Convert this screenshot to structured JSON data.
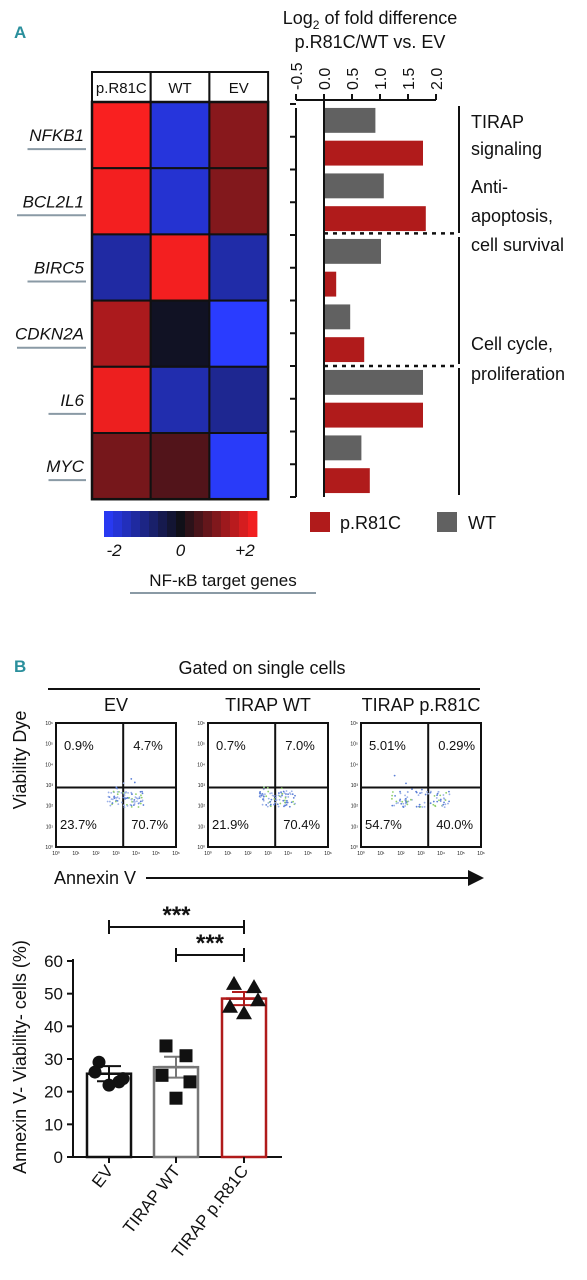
{
  "panel_a": {
    "letter": "A",
    "heatmap": {
      "columns": [
        "p.R81C",
        "WT",
        "EV"
      ],
      "genes": [
        "NFKB1",
        "BCL2L1",
        "BIRC5",
        "CDKN2A",
        "IL6",
        "MYC"
      ],
      "values": [
        [
          1.95,
          -1.7,
          1.0
        ],
        [
          1.9,
          -1.6,
          0.95
        ],
        [
          -1.2,
          1.9,
          -1.25
        ],
        [
          1.3,
          -0.1,
          -2.0
        ],
        [
          1.85,
          -1.3,
          -1.05
        ],
        [
          0.85,
          0.55,
          -1.95
        ]
      ],
      "scale_ticks": [
        "-2",
        "0",
        "+2"
      ],
      "scale_title": "NF-κB target genes",
      "colors": {
        "low": "#2a3cff",
        "mid": "#101018",
        "high": "#ff2020"
      }
    },
    "bar_chart": {
      "title_main": "Log",
      "title_sub": "2",
      "title_rest": " of fold difference",
      "title_line2": "p.R81C/WT vs. EV",
      "tick_labels": [
        "-0.5",
        "0.0",
        "0.5",
        "1.0",
        "1.5",
        "2.0"
      ],
      "groups": [
        {
          "label_lines": [
            "TIRAP",
            "signaling"
          ]
        },
        {
          "label_lines": [
            "Anti-",
            "apoptosis,",
            "cell survival"
          ]
        },
        {
          "label_lines": [
            "Cell cycle,",
            "proliferation"
          ]
        }
      ],
      "legend": [
        {
          "label": "p.R81C",
          "color": "#b01b1b"
        },
        {
          "label": "WT",
          "color": "#616161"
        }
      ]
    }
  },
  "chart_data": {
    "type": "bar",
    "orientation": "horizontal",
    "title": "Log2 of fold difference p.R81C/WT vs. EV",
    "xlim": [
      -0.5,
      2.0
    ],
    "genes": [
      "NFKB1",
      "BCL2L1",
      "BIRC5",
      "CDKN2A",
      "IL6",
      "MYC"
    ],
    "series": [
      {
        "name": "WT",
        "values": [
          0.9,
          1.05,
          1.0,
          0.45,
          1.75,
          0.65
        ]
      },
      {
        "name": "p.R81C",
        "values": [
          1.75,
          1.8,
          0.2,
          0.7,
          1.75,
          0.8
        ]
      }
    ]
  },
  "panel_b": {
    "letter": "B",
    "header": "Gated on single cells",
    "y_label": "Viability Dye",
    "x_label": "Annexin V",
    "flow_plots": [
      {
        "title": "EV",
        "quadrants": [
          "0.9%",
          "4.7%",
          "23.7%",
          "70.7%"
        ]
      },
      {
        "title": "TIRAP WT",
        "quadrants": [
          "0.7%",
          "7.0%",
          "21.9%",
          "70.4%"
        ]
      },
      {
        "title": "TIRAP p.R81C",
        "quadrants": [
          "5.01%",
          "0.29%",
          "54.7%",
          "40.0%"
        ]
      }
    ],
    "axis_ticks": [
      "10⁰",
      "10¹",
      "10²",
      "10³",
      "10⁴",
      "10⁵",
      "10⁶"
    ],
    "bar_chart": {
      "y_label": "Annexin V- Viability- cells (%)",
      "y_ticks": [
        "0",
        "10",
        "20",
        "30",
        "40",
        "50",
        "60"
      ],
      "ylim": [
        0,
        60
      ],
      "categories": [
        "EV",
        "TIRAP WT",
        "TIRAP p.R81C"
      ],
      "means": [
        25.5,
        27.5,
        48.5
      ],
      "sem": [
        2.3,
        3.2,
        2.0
      ],
      "points": [
        [
          29,
          23,
          26,
          24,
          22
        ],
        [
          34,
          31,
          25,
          23,
          18
        ],
        [
          53,
          52,
          46,
          48,
          44
        ]
      ],
      "markers": [
        "circle",
        "square",
        "triangle"
      ],
      "bar_colors": [
        "#111111",
        "#777777",
        "#b01b1b"
      ],
      "significance": [
        {
          "from": 0,
          "to": 2,
          "label": "***"
        },
        {
          "from": 1,
          "to": 2,
          "label": "***"
        }
      ]
    }
  }
}
